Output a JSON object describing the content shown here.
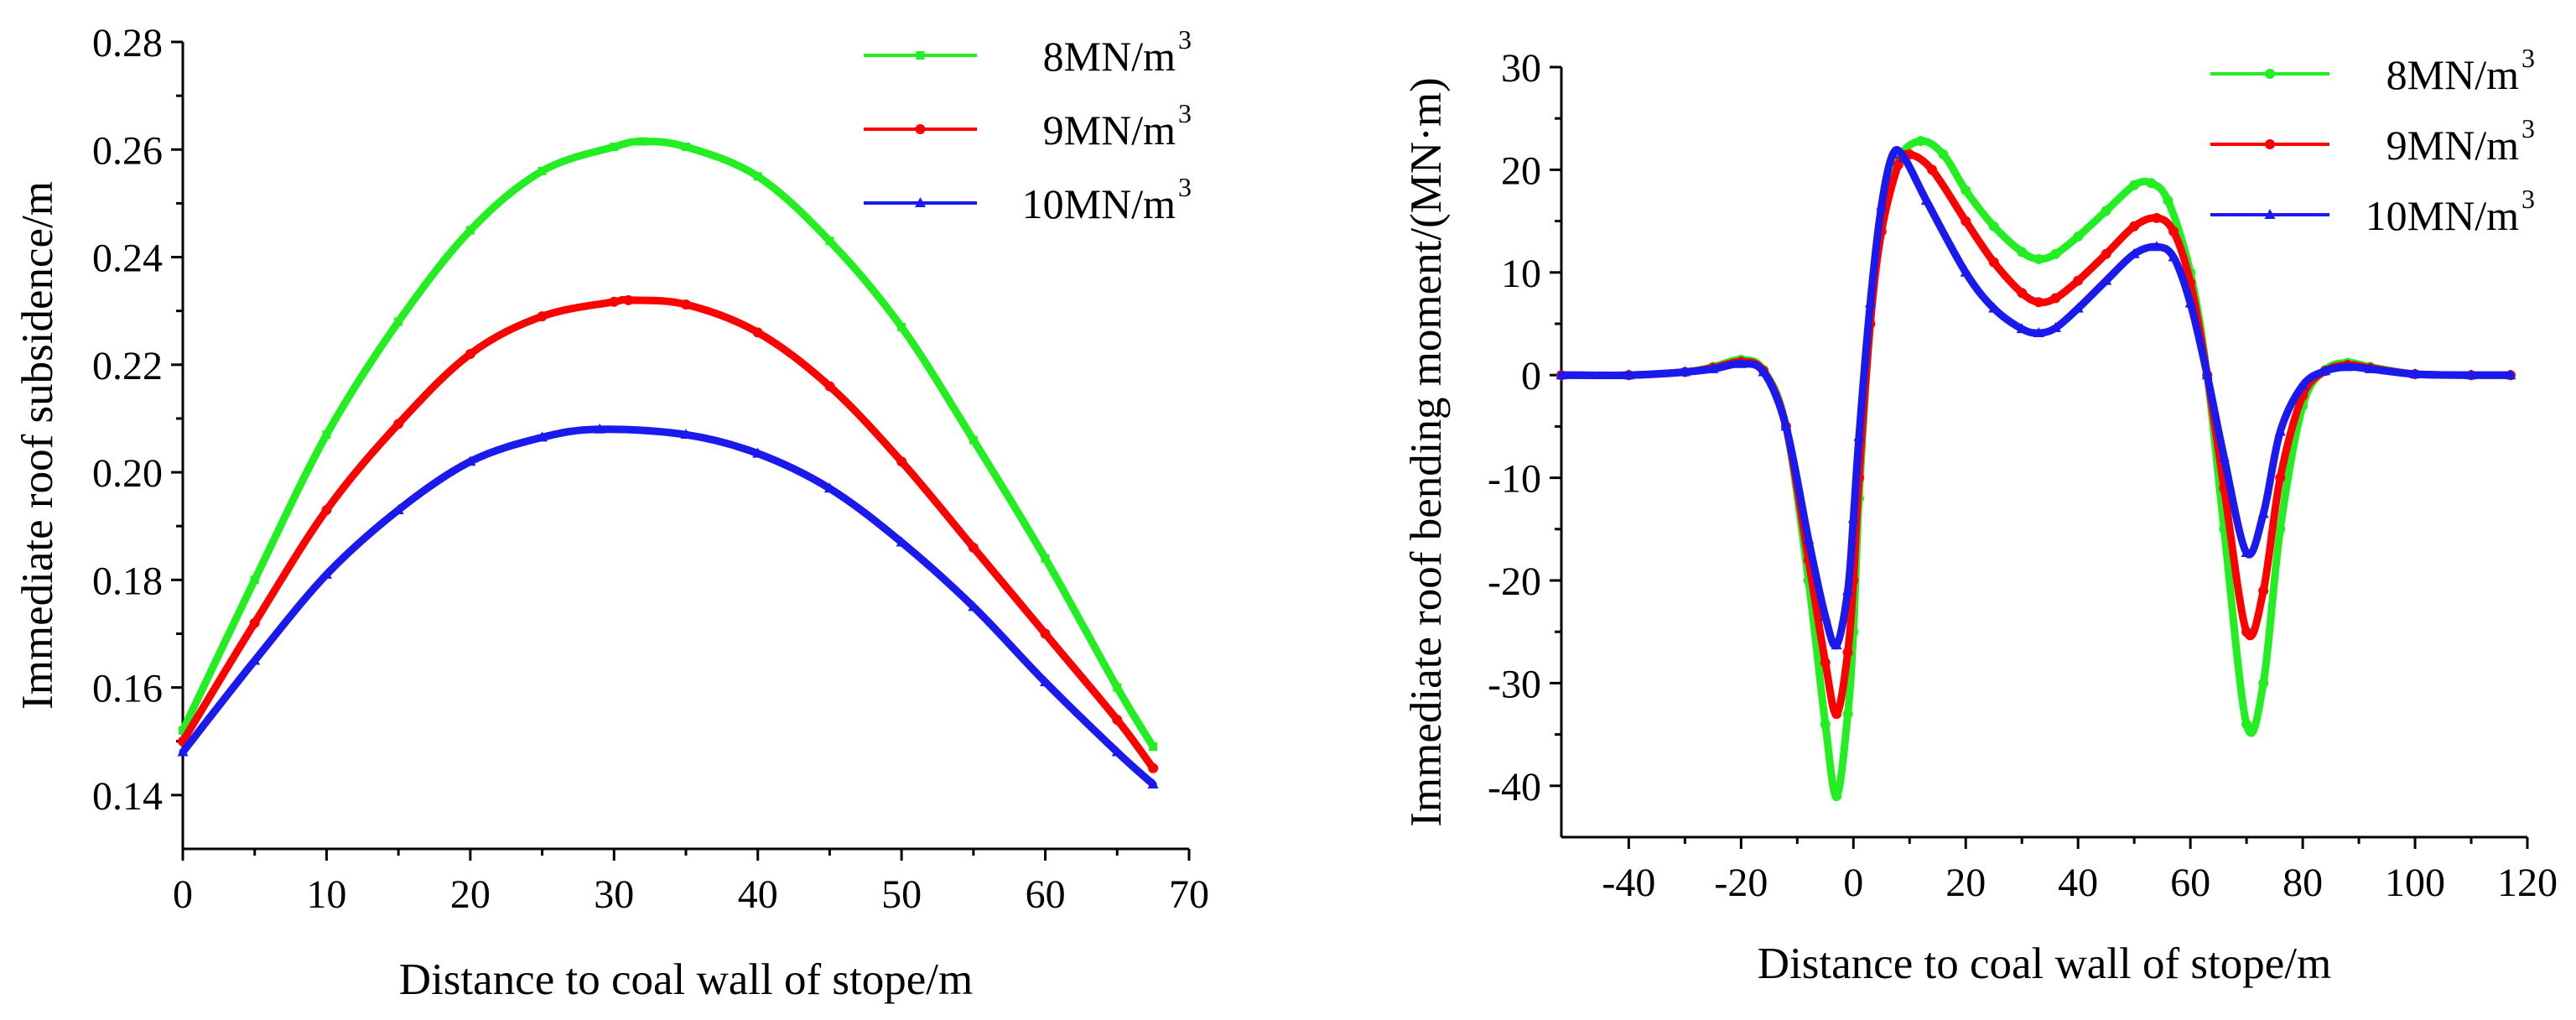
{
  "chart_data": [
    {
      "type": "line",
      "title": "",
      "xlabel": "Distance to coal wall of stope/m",
      "ylabel": "Immediate roof subsidence/m",
      "xlim": [
        0,
        70
      ],
      "ylim": [
        0.13,
        0.28
      ],
      "x_ticks": [
        0,
        10,
        20,
        30,
        40,
        50,
        60,
        70
      ],
      "x_tick_labels": [
        "0",
        "10",
        "20",
        "30",
        "40",
        "50",
        "60",
        "70"
      ],
      "y_ticks": [
        0.14,
        0.16,
        0.18,
        0.2,
        0.22,
        0.24,
        0.26,
        0.28
      ],
      "y_tick_labels": [
        "0.14",
        "0.16",
        "0.18",
        "0.20",
        "0.22",
        "0.24",
        "0.26",
        "0.28"
      ],
      "legend_position": "top-right",
      "series": [
        {
          "name": "8MN/m",
          "unit_exponent": "3",
          "color": "#22ee22",
          "marker": "square",
          "x": [
            0,
            5,
            10,
            15,
            20,
            25,
            30,
            32,
            35,
            40,
            45,
            50,
            55,
            60,
            65,
            67.5
          ],
          "y": [
            0.152,
            0.18,
            0.207,
            0.228,
            0.245,
            0.256,
            0.2605,
            0.2615,
            0.2605,
            0.255,
            0.243,
            0.227,
            0.206,
            0.184,
            0.16,
            0.149
          ]
        },
        {
          "name": "9MN/m",
          "unit_exponent": "3",
          "color": "#ff0000",
          "marker": "circle",
          "x": [
            0,
            5,
            10,
            15,
            20,
            25,
            30,
            31,
            35,
            40,
            45,
            50,
            55,
            60,
            65,
            67.5
          ],
          "y": [
            0.15,
            0.172,
            0.193,
            0.209,
            0.222,
            0.229,
            0.2317,
            0.232,
            0.2312,
            0.226,
            0.216,
            0.202,
            0.186,
            0.17,
            0.154,
            0.145
          ]
        },
        {
          "name": "10MN/m",
          "unit_exponent": "3",
          "color": "#1a1aee",
          "marker": "triangle",
          "x": [
            0,
            5,
            10,
            15,
            20,
            25,
            29,
            35,
            40,
            45,
            50,
            55,
            60,
            65,
            67.5
          ],
          "y": [
            0.148,
            0.165,
            0.181,
            0.193,
            0.202,
            0.2065,
            0.208,
            0.207,
            0.2035,
            0.197,
            0.187,
            0.175,
            0.161,
            0.148,
            0.142
          ]
        }
      ]
    },
    {
      "type": "line",
      "title": "",
      "xlabel": "Distance to coal wall of stope/m",
      "ylabel": "Immediate roof bending moment/(MN·m)",
      "xlim": [
        -52,
        120
      ],
      "ylim": [
        -45,
        30
      ],
      "x_ticks": [
        -40,
        -20,
        0,
        20,
        40,
        60,
        80,
        100,
        120
      ],
      "x_tick_labels": [
        "-40",
        "-20",
        "0",
        "20",
        "40",
        "60",
        "80",
        "100",
        "120"
      ],
      "y_ticks": [
        -40,
        -30,
        -20,
        -10,
        0,
        10,
        20,
        30
      ],
      "y_tick_labels": [
        "-40",
        "-30",
        "-20",
        "-10",
        "0",
        "10",
        "20",
        "30"
      ],
      "legend_position": "top-right",
      "series": [
        {
          "name": "8MN/m",
          "unit_exponent": "3",
          "color": "#22ee22",
          "marker": "circle",
          "x": [
            -52,
            -40,
            -30,
            -25,
            -20,
            -16,
            -12,
            -8,
            -5,
            -3,
            -1,
            0,
            1,
            3,
            5,
            8,
            12,
            16,
            20,
            25,
            30,
            33,
            36,
            40,
            45,
            50,
            53,
            56,
            60,
            63,
            66,
            70,
            73,
            76,
            80,
            84,
            88,
            92,
            100,
            110,
            117
          ],
          "y": [
            0,
            0,
            0.3,
            0.8,
            1.5,
            0.5,
            -5,
            -20,
            -34,
            -41,
            -33,
            -25,
            -12,
            5,
            15,
            21,
            22.8,
            21.5,
            18,
            14.5,
            12,
            11.3,
            11.8,
            13.5,
            16,
            18.5,
            18.7,
            17,
            10,
            0,
            -15,
            -34,
            -30,
            -15,
            -3,
            0.5,
            1.2,
            0.8,
            0.1,
            0,
            0
          ]
        },
        {
          "name": "9MN/m",
          "unit_exponent": "3",
          "color": "#ff0000",
          "marker": "circle",
          "x": [
            -52,
            -40,
            -30,
            -25,
            -20,
            -16,
            -12,
            -8,
            -5,
            -3,
            -1,
            0,
            1,
            3,
            5,
            8,
            10,
            14,
            20,
            25,
            30,
            33,
            36,
            40,
            45,
            50,
            54,
            57,
            60,
            63,
            66,
            70,
            73,
            76,
            80,
            84,
            88,
            92,
            100,
            110,
            117
          ],
          "y": [
            0,
            0,
            0.3,
            0.7,
            1.3,
            0.4,
            -5,
            -18,
            -28,
            -33,
            -27,
            -20,
            -10,
            5,
            14,
            20.5,
            21.5,
            20,
            15,
            11,
            8,
            7.1,
            7.5,
            9.2,
            11.8,
            14.5,
            15.3,
            14,
            9,
            0,
            -11,
            -25,
            -21,
            -10,
            -2,
            0.4,
            1,
            0.7,
            0.1,
            0,
            0
          ]
        },
        {
          "name": "10MN/m",
          "unit_exponent": "3",
          "color": "#1a1aee",
          "marker": "triangle",
          "x": [
            -52,
            -40,
            -30,
            -25,
            -20,
            -16,
            -12,
            -8,
            -5,
            -3,
            -1,
            0,
            1,
            3,
            5,
            7,
            9,
            13,
            20,
            25,
            30,
            33,
            36,
            40,
            45,
            50,
            54,
            57,
            60,
            63,
            66,
            70,
            73,
            76,
            80,
            84,
            88,
            92,
            100,
            110,
            117
          ],
          "y": [
            0,
            0,
            0.3,
            0.6,
            1.1,
            0.3,
            -5,
            -16,
            -23.5,
            -26.3,
            -21,
            -14,
            -6,
            7,
            16.5,
            21.5,
            21.2,
            17,
            10,
            6.5,
            4.5,
            4.1,
            4.6,
            6.5,
            9.2,
            11.8,
            12.5,
            11.5,
            7,
            0,
            -8,
            -17.3,
            -13.5,
            -5.5,
            -1,
            0.4,
            0.8,
            0.6,
            0.1,
            0,
            0
          ]
        }
      ]
    }
  ]
}
